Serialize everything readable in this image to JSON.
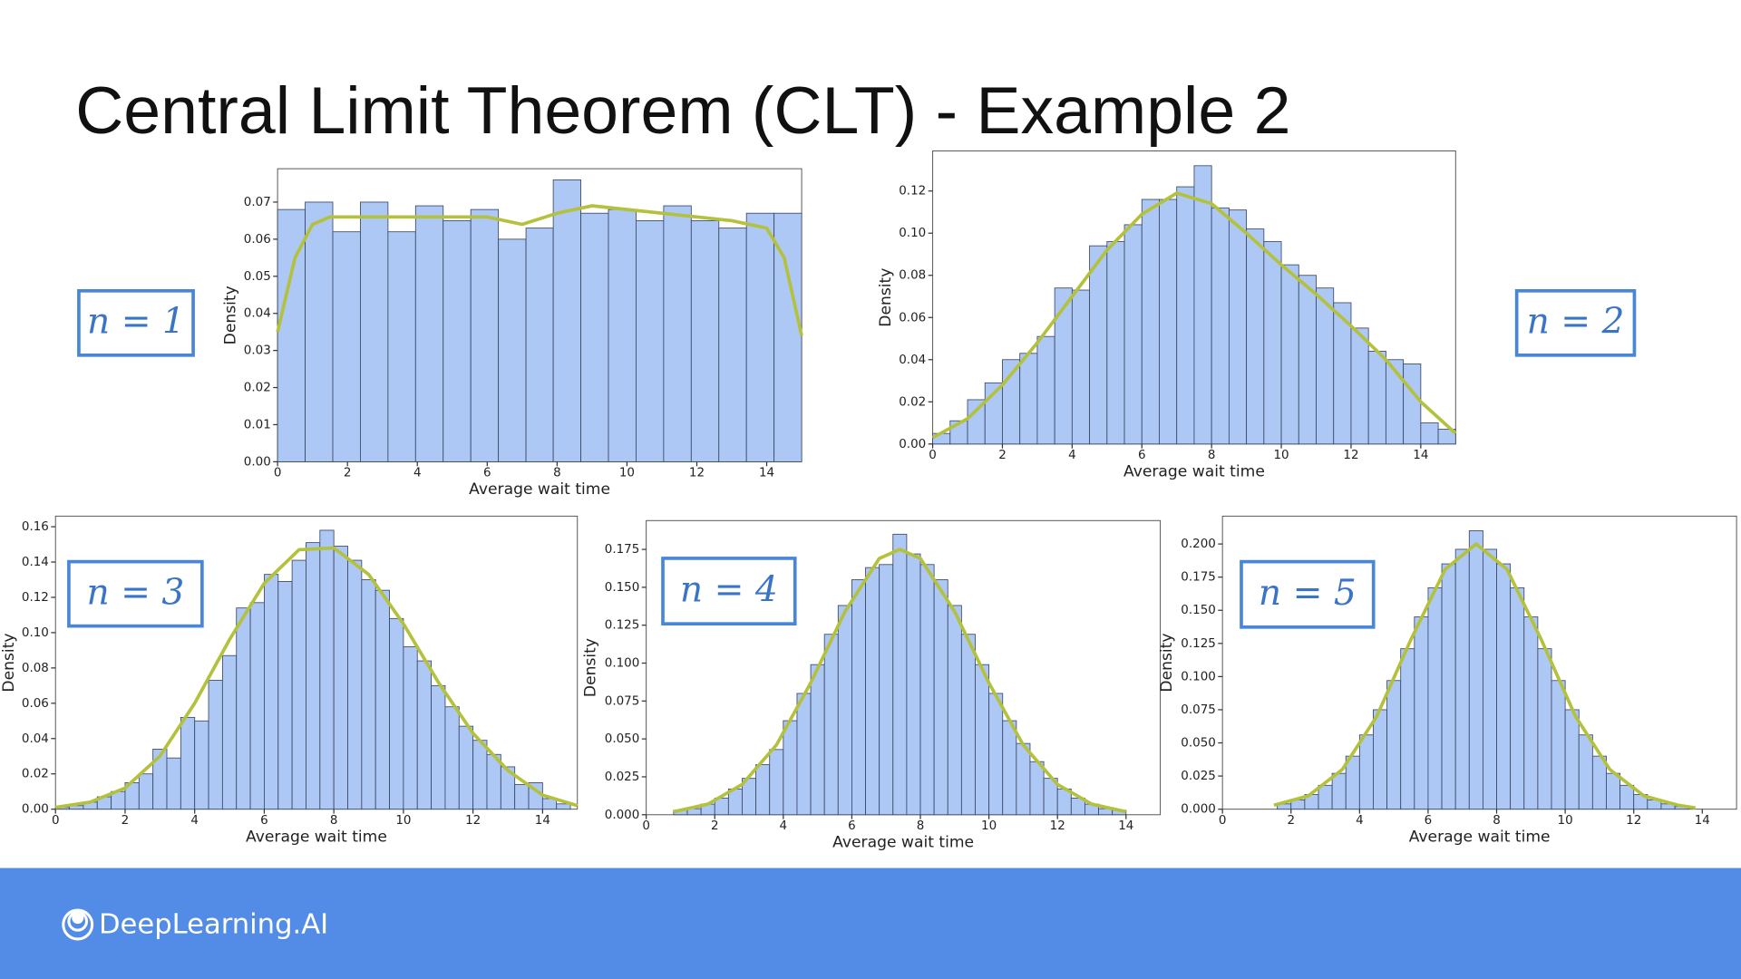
{
  "title": "Central Limit Theorem (CLT) - Example 2",
  "footer": "DeepLearning.AI",
  "chart_data": [
    {
      "type": "histogram",
      "annotation": "n = 1",
      "xlabel": "Average wait time",
      "ylabel": "Density",
      "color": "#aec8f6",
      "edgecolor": "#3c4a68",
      "kde_color": "#b4c13c",
      "bins": [
        0,
        0.79,
        1.58,
        2.37,
        3.16,
        3.95,
        4.74,
        5.53,
        6.32,
        7.11,
        7.89,
        8.68,
        9.47,
        10.26,
        11.05,
        11.84,
        12.63,
        13.42,
        14.21,
        15
      ],
      "values": [
        0.068,
        0.07,
        0.062,
        0.07,
        0.062,
        0.069,
        0.065,
        0.068,
        0.06,
        0.063,
        0.076,
        0.067,
        0.068,
        0.065,
        0.069,
        0.065,
        0.063,
        0.067,
        0.067
      ],
      "kde": {
        "x": [
          0,
          0.5,
          1,
          1.5,
          2,
          3,
          4,
          5,
          6,
          7,
          8,
          9,
          10,
          11,
          12,
          13,
          14,
          14.5,
          15
        ],
        "y": [
          0.035,
          0.055,
          0.064,
          0.066,
          0.066,
          0.066,
          0.066,
          0.066,
          0.066,
          0.064,
          0.067,
          0.069,
          0.068,
          0.067,
          0.066,
          0.065,
          0.063,
          0.055,
          0.034
        ]
      },
      "xlim": [
        0,
        15
      ],
      "ylim": [
        0,
        0.079
      ],
      "xticks": [
        0,
        2,
        4,
        6,
        8,
        10,
        12,
        14
      ],
      "yticks": [
        {
          "value": 0,
          "label": "0.00"
        },
        {
          "value": 0.01,
          "label": "0.01"
        },
        {
          "value": 0.02,
          "label": "0.02"
        },
        {
          "value": 0.03,
          "label": "0.03"
        },
        {
          "value": 0.04,
          "label": "0.04"
        },
        {
          "value": 0.05,
          "label": "0.05"
        },
        {
          "value": 0.06,
          "label": "0.06"
        },
        {
          "value": 0.07,
          "label": "0.07"
        }
      ]
    },
    {
      "type": "histogram",
      "annotation": "n = 2",
      "xlabel": "Average wait time",
      "ylabel": "Density",
      "color": "#aec8f6",
      "edgecolor": "#3c4a68",
      "kde_color": "#b4c13c",
      "bins": [
        0,
        0.5,
        1,
        1.5,
        2,
        2.5,
        3,
        3.5,
        4,
        4.5,
        5,
        5.5,
        6,
        6.5,
        7,
        7.5,
        8,
        8.5,
        9,
        9.5,
        10,
        10.5,
        11,
        11.5,
        12,
        12.5,
        13,
        13.5,
        14,
        14.5,
        15
      ],
      "values": [
        0.005,
        0.011,
        0.021,
        0.029,
        0.04,
        0.043,
        0.051,
        0.074,
        0.073,
        0.094,
        0.096,
        0.104,
        0.116,
        0.116,
        0.122,
        0.132,
        0.112,
        0.111,
        0.102,
        0.096,
        0.085,
        0.08,
        0.074,
        0.067,
        0.055,
        0.044,
        0.04,
        0.038,
        0.01,
        0.007
      ],
      "kde": {
        "x": [
          0,
          1,
          2,
          3,
          4,
          5,
          6,
          7,
          8,
          9,
          10,
          11,
          12,
          13,
          14,
          15
        ],
        "y": [
          0.003,
          0.012,
          0.028,
          0.048,
          0.07,
          0.092,
          0.109,
          0.119,
          0.114,
          0.1,
          0.085,
          0.071,
          0.056,
          0.04,
          0.02,
          0.005
        ]
      },
      "xlim": [
        0,
        15
      ],
      "ylim": [
        0,
        0.139
      ],
      "xticks": [
        0,
        2,
        4,
        6,
        8,
        10,
        12,
        14
      ],
      "yticks": [
        {
          "value": 0,
          "label": "0.00"
        },
        {
          "value": 0.02,
          "label": "0.02"
        },
        {
          "value": 0.04,
          "label": "0.04"
        },
        {
          "value": 0.06,
          "label": "0.06"
        },
        {
          "value": 0.08,
          "label": "0.08"
        },
        {
          "value": 0.1,
          "label": "0.10"
        },
        {
          "value": 0.12,
          "label": "0.12"
        }
      ]
    },
    {
      "type": "histogram",
      "annotation": "n = 3",
      "xlabel": "Average wait time",
      "ylabel": "Density",
      "color": "#aec8f6",
      "edgecolor": "#3c4a68",
      "kde_color": "#b4c13c",
      "bins": [
        0,
        0.4,
        0.8,
        1.2,
        1.6,
        2,
        2.4,
        2.8,
        3.2,
        3.6,
        4,
        4.4,
        4.8,
        5.2,
        5.6,
        6,
        6.4,
        6.8,
        7.2,
        7.6,
        8,
        8.4,
        8.8,
        9.2,
        9.6,
        10,
        10.4,
        10.8,
        11.2,
        11.6,
        12,
        12.4,
        12.8,
        13.2,
        13.6,
        14,
        14.4,
        14.8
      ],
      "values": [
        0.001,
        0.002,
        0.004,
        0.007,
        0.01,
        0.015,
        0.02,
        0.034,
        0.029,
        0.052,
        0.05,
        0.073,
        0.087,
        0.114,
        0.117,
        0.133,
        0.129,
        0.141,
        0.151,
        0.158,
        0.149,
        0.141,
        0.13,
        0.124,
        0.108,
        0.092,
        0.084,
        0.07,
        0.058,
        0.047,
        0.039,
        0.031,
        0.024,
        0.014,
        0.015,
        0.006,
        0.003
      ],
      "kde": {
        "x": [
          0,
          1,
          2,
          3,
          4,
          5,
          6,
          7,
          8,
          9,
          10,
          11,
          12,
          13,
          14,
          15
        ],
        "y": [
          0.001,
          0.004,
          0.012,
          0.03,
          0.06,
          0.096,
          0.128,
          0.147,
          0.148,
          0.133,
          0.105,
          0.072,
          0.043,
          0.022,
          0.008,
          0.002
        ]
      },
      "xlim": [
        0,
        15
      ],
      "ylim": [
        0,
        0.166
      ],
      "xticks": [
        0,
        2,
        4,
        6,
        8,
        10,
        12,
        14
      ],
      "yticks": [
        {
          "value": 0,
          "label": "0.00"
        },
        {
          "value": 0.02,
          "label": "0.02"
        },
        {
          "value": 0.04,
          "label": "0.04"
        },
        {
          "value": 0.06,
          "label": "0.06"
        },
        {
          "value": 0.08,
          "label": "0.08"
        },
        {
          "value": 0.1,
          "label": "0.10"
        },
        {
          "value": 0.12,
          "label": "0.12"
        },
        {
          "value": 0.14,
          "label": "0.14"
        },
        {
          "value": 0.16,
          "label": "0.16"
        }
      ]
    },
    {
      "type": "histogram",
      "annotation": "n = 4",
      "xlabel": "Average wait time",
      "ylabel": "Density",
      "color": "#aec8f6",
      "edgecolor": "#3c4a68",
      "kde_color": "#b4c13c",
      "bins": [
        0.8,
        1.2,
        1.6,
        2,
        2.4,
        2.8,
        3.2,
        3.6,
        4,
        4.4,
        4.8,
        5.2,
        5.6,
        6,
        6.4,
        6.8,
        7.2,
        7.6,
        8,
        8.4,
        8.8,
        9.2,
        9.6,
        10,
        10.4,
        10.8,
        11.2,
        11.6,
        12,
        12.4,
        12.8,
        13.2,
        13.6,
        14
      ],
      "values": [
        0.003,
        0.004,
        0.007,
        0.011,
        0.017,
        0.024,
        0.033,
        0.043,
        0.062,
        0.08,
        0.099,
        0.119,
        0.138,
        0.155,
        0.163,
        0.165,
        0.185,
        0.172,
        0.165,
        0.155,
        0.138,
        0.119,
        0.099,
        0.08,
        0.062,
        0.047,
        0.035,
        0.024,
        0.017,
        0.011,
        0.007,
        0.004,
        0.003
      ],
      "kde": {
        "x": [
          0.8,
          1.8,
          2.8,
          3.8,
          4.8,
          5.8,
          6.8,
          7.4,
          8,
          9,
          10,
          11,
          12,
          13,
          14
        ],
        "y": [
          0.002,
          0.007,
          0.02,
          0.046,
          0.087,
          0.134,
          0.169,
          0.175,
          0.169,
          0.134,
          0.087,
          0.046,
          0.02,
          0.007,
          0.002
        ]
      },
      "xlim": [
        0,
        15
      ],
      "ylim": [
        0,
        0.194
      ],
      "xticks": [
        0,
        2,
        4,
        6,
        8,
        10,
        12,
        14
      ],
      "yticks": [
        {
          "value": 0,
          "label": "0.000"
        },
        {
          "value": 0.025,
          "label": "0.025"
        },
        {
          "value": 0.05,
          "label": "0.050"
        },
        {
          "value": 0.075,
          "label": "0.075"
        },
        {
          "value": 0.1,
          "label": "0.100"
        },
        {
          "value": 0.125,
          "label": "0.125"
        },
        {
          "value": 0.15,
          "label": "0.150"
        },
        {
          "value": 0.175,
          "label": "0.175"
        }
      ]
    },
    {
      "type": "histogram",
      "annotation": "n = 5",
      "xlabel": "Average wait time",
      "ylabel": "Density",
      "color": "#aec8f6",
      "edgecolor": "#3c4a68",
      "kde_color": "#b4c13c",
      "bins": [
        1.6,
        2,
        2.4,
        2.8,
        3.2,
        3.6,
        4,
        4.4,
        4.8,
        5.2,
        5.6,
        6,
        6.4,
        6.8,
        7.2,
        7.6,
        8,
        8.4,
        8.8,
        9.2,
        9.6,
        10,
        10.4,
        10.8,
        11.2,
        11.6,
        12,
        12.4,
        12.8,
        13.2,
        13.6
      ],
      "values": [
        0.004,
        0.007,
        0.011,
        0.018,
        0.027,
        0.04,
        0.056,
        0.075,
        0.097,
        0.121,
        0.145,
        0.167,
        0.185,
        0.196,
        0.21,
        0.196,
        0.185,
        0.167,
        0.145,
        0.121,
        0.097,
        0.075,
        0.056,
        0.04,
        0.027,
        0.018,
        0.011,
        0.007,
        0.004,
        0.002
      ],
      "kde": {
        "x": [
          1.5,
          2.5,
          3.5,
          4.5,
          5.5,
          6.5,
          7.4,
          8.3,
          9.3,
          10.3,
          11.3,
          12.3,
          13.3,
          13.8
        ],
        "y": [
          0.003,
          0.01,
          0.03,
          0.07,
          0.128,
          0.181,
          0.2,
          0.181,
          0.128,
          0.07,
          0.03,
          0.01,
          0.003,
          0.001
        ]
      },
      "xlim": [
        0,
        15
      ],
      "ylim": [
        0,
        0.221
      ],
      "xticks": [
        0,
        2,
        4,
        6,
        8,
        10,
        12,
        14
      ],
      "yticks": [
        {
          "value": 0,
          "label": "0.000"
        },
        {
          "value": 0.025,
          "label": "0.025"
        },
        {
          "value": 0.05,
          "label": "0.050"
        },
        {
          "value": 0.075,
          "label": "0.075"
        },
        {
          "value": 0.1,
          "label": "0.100"
        },
        {
          "value": 0.125,
          "label": "0.125"
        },
        {
          "value": 0.15,
          "label": "0.150"
        },
        {
          "value": 0.175,
          "label": "0.175"
        },
        {
          "value": 0.2,
          "label": "0.200"
        }
      ]
    }
  ]
}
